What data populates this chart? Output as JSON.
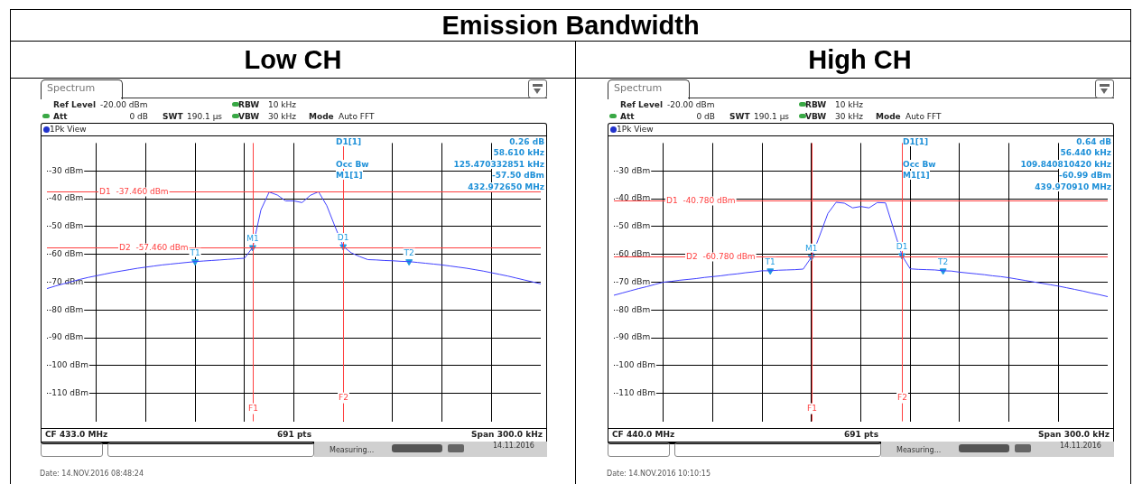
{
  "chart_data": [
    {
      "type": "line",
      "title": "Emission Bandwidth",
      "subtitle": "Low CH",
      "categories": [
        null,
        null,
        null,
        null,
        null,
        null,
        null,
        null,
        null,
        null,
        null,
        null,
        null,
        null,
        null,
        null,
        null,
        null,
        null,
        null,
        null,
        null,
        null,
        null,
        null,
        null,
        null,
        null,
        null,
        null,
        null,
        null,
        null,
        null,
        null,
        null,
        null,
        null,
        null,
        null,
        null,
        null,
        null,
        null,
        null,
        null,
        null,
        null,
        null,
        null,
        null,
        null,
        null,
        null,
        null,
        null,
        null,
        null,
        null,
        null,
        null
      ],
      "ylim": [
        -120,
        -20
      ],
      "yticks": [
        {
          "value": -30,
          "label": "-30 dBm"
        },
        {
          "value": -40,
          "label": "-40 dBm"
        },
        {
          "value": -50,
          "label": "-50 dBm"
        },
        {
          "value": -60,
          "label": "-60 dBm"
        },
        {
          "value": -70,
          "label": "-70 dBm"
        },
        {
          "value": -80,
          "label": "-80 dBm"
        },
        {
          "value": -90,
          "label": "-90 dBm"
        },
        {
          "value": -100,
          "label": "-100 dBm"
        },
        {
          "value": -110,
          "label": "-110 dBm"
        }
      ],
      "tick_labels": "y",
      "grid": true,
      "series": [
        {
          "color": "#4040ff",
          "values": [
            -72.3,
            -71.4,
            -70.6,
            -69.8,
            -69.0,
            -68.3,
            -67.7,
            -67.1,
            -66.5,
            -66.0,
            -65.5,
            -65.0,
            -64.6,
            -64.2,
            -63.8,
            -63.5,
            -63.2,
            -62.9,
            -62.6,
            -62.4,
            -62.2,
            -62.0,
            -61.8,
            -61.6,
            -61.4,
            -57.5,
            -44.0,
            -37.6,
            -38.7,
            -40.8,
            -40.8,
            -41.4,
            -38.8,
            -37.5,
            -42.5,
            -50.0,
            -57.2,
            -59.5,
            -60.8,
            -61.9,
            -62.0,
            -62.2,
            -62.3,
            -62.5,
            -62.6,
            -62.9,
            -63.2,
            -63.5,
            -63.8,
            -64.2,
            -64.6,
            -65.0,
            -65.5,
            -66.0,
            -66.6,
            -67.2,
            -67.8,
            -68.5,
            -69.2,
            -69.9,
            -70.6
          ]
        },
        {
          "type": "scatter",
          "color": "#1e9be0",
          "marker": "triangle",
          "values": [
            null,
            null,
            null,
            null,
            null,
            null,
            null,
            null,
            null,
            null,
            null,
            null,
            null,
            null,
            null,
            null,
            null,
            null,
            -62.6,
            null,
            null,
            null,
            null,
            null,
            null,
            -57.5,
            null,
            null,
            null,
            null,
            null,
            null,
            null,
            null,
            null,
            null,
            -57.2,
            null,
            null,
            null,
            null,
            null,
            null,
            null,
            -62.6,
            null,
            null,
            null,
            null,
            null,
            null,
            null,
            null,
            null,
            null,
            null,
            null,
            null,
            null,
            null,
            null
          ]
        }
      ],
      "ref_lines": [
        {
          "axis": "y",
          "value": -37.46,
          "label": "D1  -37.460 dBm",
          "color": "#ff4040"
        },
        {
          "axis": "y",
          "value": -57.46,
          "label": "D2  -57.460 dBm",
          "color": "#ff4040"
        }
      ],
      "annotations": [
        "Spectrum",
        "Ref Level",
        "-20.00 dBm",
        "Att",
        "0 dB",
        "SWT",
        "190.1 µs",
        "RBW",
        "10 kHz",
        "VBW",
        "30 kHz",
        "Mode",
        "Auto FFT",
        "1Pk View",
        "D1[1]",
        "0.26 dB",
        "58.610 kHz",
        "Occ Bw",
        "125.470332851 kHz",
        "M1[1]",
        "-57.50 dBm",
        "432.972650 MHz",
        "CF 433.0 MHz",
        "691 pts",
        "Span 300.0 kHz",
        "Measuring...",
        "14.11.2016",
        "Date: 14.NOV.2016  08:48:24",
        "F1",
        "F2",
        {
          "text": "M1",
          "y": -57.5
        },
        {
          "text": "D1",
          "y": -57.2
        },
        {
          "text": "T1",
          "y": -62.6
        },
        {
          "text": "T2",
          "y": -62.6
        }
      ]
    },
    {
      "type": "line",
      "subtitle": "High CH",
      "categories": [
        null,
        null,
        null,
        null,
        null,
        null,
        null,
        null,
        null,
        null,
        null,
        null,
        null,
        null,
        null,
        null,
        null,
        null,
        null,
        null,
        null,
        null,
        null,
        null,
        null,
        null,
        null,
        null,
        null,
        null,
        null,
        null,
        null,
        null,
        null,
        null,
        null,
        null,
        null,
        null,
        null,
        null,
        null,
        null,
        null,
        null,
        null,
        null,
        null,
        null,
        null,
        null,
        null,
        null,
        null,
        null,
        null,
        null,
        null,
        null,
        null
      ],
      "ylim": [
        -120,
        -20
      ],
      "yticks": [
        {
          "value": -30,
          "label": "-30 dBm"
        },
        {
          "value": -40,
          "label": "-40 dBm"
        },
        {
          "value": -50,
          "label": "-50 dBm"
        },
        {
          "value": -60,
          "label": "-60 dBm"
        },
        {
          "value": -70,
          "label": "-70 dBm"
        },
        {
          "value": -80,
          "label": "-80 dBm"
        },
        {
          "value": -90,
          "label": "-90 dBm"
        },
        {
          "value": -100,
          "label": "-100 dBm"
        },
        {
          "value": -110,
          "label": "-110 dBm"
        }
      ],
      "tick_labels": "y",
      "grid": true,
      "series": [
        {
          "color": "#4040ff",
          "values": [
            -74.7,
            -73.9,
            -73.1,
            -72.3,
            -71.6,
            -70.8,
            -70.0,
            -69.7,
            -69.3,
            -69.0,
            -68.7,
            -68.3,
            -68.0,
            -67.7,
            -67.3,
            -67.0,
            -66.6,
            -66.3,
            -65.9,
            -65.9,
            -65.7,
            -65.6,
            -65.5,
            -65.3,
            -61.0,
            -53.3,
            -45.3,
            -41.3,
            -41.6,
            -43.3,
            -42.8,
            -43.3,
            -41.4,
            -41.5,
            -51.0,
            -60.4,
            -65.2,
            -65.4,
            -65.5,
            -65.6,
            -65.9,
            -66.0,
            -66.4,
            -66.7,
            -67.0,
            -67.3,
            -67.7,
            -68.0,
            -68.4,
            -68.9,
            -69.4,
            -69.9,
            -70.4,
            -70.9,
            -71.4,
            -72.0,
            -72.6,
            -73.2,
            -73.9,
            -74.5,
            -75.2
          ]
        },
        {
          "type": "scatter",
          "color": "#1e9be0",
          "marker": "triangle",
          "values": [
            null,
            null,
            null,
            null,
            null,
            null,
            null,
            null,
            null,
            null,
            null,
            null,
            null,
            null,
            null,
            null,
            null,
            null,
            null,
            -65.9,
            null,
            null,
            null,
            null,
            -61.0,
            null,
            null,
            null,
            null,
            null,
            null,
            null,
            null,
            null,
            null,
            -60.4,
            null,
            null,
            null,
            null,
            -65.9,
            null,
            null,
            null,
            null,
            null,
            null,
            null,
            null,
            null,
            null,
            null,
            null,
            null,
            null,
            null,
            null,
            null,
            null,
            null,
            null
          ]
        }
      ],
      "ref_lines": [
        {
          "axis": "y",
          "value": -40.78,
          "label": "D1  -40.780 dBm",
          "color": "#ff4040"
        },
        {
          "axis": "y",
          "value": -60.78,
          "label": "D2  -60.780 dBm",
          "color": "#ff4040"
        }
      ],
      "annotations": [
        "Spectrum",
        "Ref Level",
        "-20.00 dBm",
        "Att",
        "0 dB",
        "SWT",
        "190.1 µs",
        "RBW",
        "10 kHz",
        "VBW",
        "30 kHz",
        "Mode",
        "Auto FFT",
        "1Pk View",
        "D1[1]",
        "0.64 dB",
        "56.440 kHz",
        "Occ Bw",
        "109.840810420 kHz",
        "M1[1]",
        "-60.99 dBm",
        "439.970910 MHz",
        "CF 440.0 MHz",
        "691 pts",
        "Span 300.0 kHz",
        "Measuring...",
        "14.11.2016",
        "Date: 14.NOV.2016  10:10:15",
        "F1",
        "F2",
        {
          "text": "M1",
          "y": -61.0
        },
        {
          "text": "D1",
          "y": -60.4
        },
        {
          "text": "T1",
          "y": -65.9
        },
        {
          "text": "T2",
          "y": -65.9
        }
      ]
    }
  ]
}
